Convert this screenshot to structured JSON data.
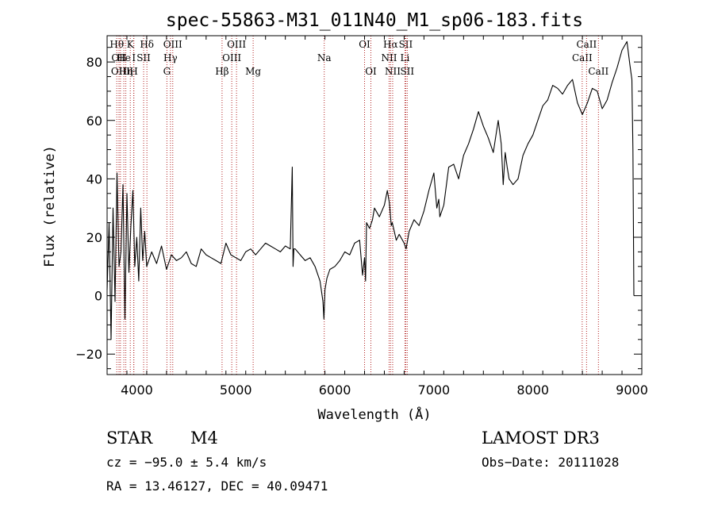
{
  "chart_data": {
    "type": "line",
    "title": "spec-55863-M31_011N40_M1_sp06-183.fits",
    "xlabel": "Wavelength (Å)",
    "ylabel": "Flux (relative)",
    "xlim": [
      3700,
      9100
    ],
    "ylim": [
      -27,
      89
    ],
    "xticks": [
      4000,
      5000,
      6000,
      7000,
      8000,
      9000
    ],
    "yticks": [
      -20,
      0,
      20,
      40,
      60,
      80
    ],
    "xminor_step": 200,
    "yminor_step": 5,
    "grid": false,
    "line_color": "#b22222",
    "series": [
      {
        "name": "flux",
        "x": [
          3700,
          3720,
          3740,
          3760,
          3780,
          3800,
          3820,
          3840,
          3860,
          3880,
          3900,
          3920,
          3940,
          3960,
          3980,
          4000,
          4020,
          4040,
          4060,
          4080,
          4100,
          4150,
          4200,
          4250,
          4300,
          4350,
          4400,
          4450,
          4500,
          4550,
          4600,
          4650,
          4700,
          4750,
          4800,
          4850,
          4900,
          4950,
          5000,
          5050,
          5100,
          5150,
          5200,
          5250,
          5300,
          5350,
          5400,
          5450,
          5500,
          5550,
          5570,
          5578,
          5586,
          5600,
          5650,
          5700,
          5750,
          5800,
          5850,
          5880,
          5890,
          5895,
          5900,
          5920,
          5950,
          6000,
          6050,
          6100,
          6150,
          6200,
          6250,
          6280,
          6300,
          6310,
          6320,
          6350,
          6380,
          6400,
          6450,
          6500,
          6530,
          6550,
          6560,
          6570,
          6580,
          6600,
          6620,
          6650,
          6700,
          6720,
          6750,
          6800,
          6850,
          6900,
          6950,
          7000,
          7030,
          7050,
          7060,
          7100,
          7150,
          7200,
          7250,
          7300,
          7350,
          7400,
          7450,
          7500,
          7550,
          7600,
          7650,
          7680,
          7700,
          7720,
          7740,
          7760,
          7800,
          7850,
          7900,
          7950,
          8000,
          8050,
          8100,
          8150,
          8200,
          8250,
          8300,
          8350,
          8400,
          8450,
          8500,
          8550,
          8600,
          8650,
          8700,
          8750,
          8800,
          8850,
          8900,
          8950,
          8980,
          9000,
          9010,
          9020
        ],
        "y": [
          2,
          25,
          -15,
          30,
          -2,
          42,
          10,
          15,
          38,
          -8,
          35,
          8,
          24,
          36,
          10,
          20,
          5,
          30,
          12,
          22,
          10,
          15,
          11,
          17,
          9,
          14,
          12,
          13,
          15,
          11,
          10,
          16,
          14,
          13,
          12,
          11,
          18,
          14,
          13,
          12,
          15,
          16,
          14,
          16,
          18,
          17,
          16,
          15,
          17,
          16,
          44,
          10,
          16,
          16,
          14,
          12,
          13,
          10,
          5,
          -2,
          -8,
          -3,
          2,
          6,
          9,
          10,
          12,
          15,
          14,
          18,
          19,
          7,
          13,
          5,
          25,
          23,
          26,
          30,
          27,
          31,
          36,
          32,
          28,
          24,
          25,
          22,
          19,
          21,
          18,
          16,
          22,
          26,
          24,
          29,
          36,
          42,
          30,
          33,
          27,
          31,
          44,
          45,
          40,
          48,
          52,
          57,
          63,
          58,
          54,
          49,
          60,
          52,
          38,
          49,
          44,
          40,
          38,
          40,
          48,
          52,
          55,
          60,
          65,
          67,
          72,
          71,
          69,
          72,
          74,
          66,
          62,
          66,
          71,
          70,
          64,
          67,
          73,
          78,
          84,
          87,
          79,
          74,
          50,
          0
        ]
      }
    ],
    "lines": [
      {
        "wl": 3798,
        "label": "Hθ",
        "row": 0
      },
      {
        "wl": 3820,
        "label": "OII",
        "row": 1
      },
      {
        "wl": 3835,
        "label": "OIII",
        "row": 2
      },
      {
        "wl": 3869,
        "label": "He",
        "row": 1
      },
      {
        "wl": 3889,
        "label": "Hη",
        "row": 2
      },
      {
        "wl": 3934,
        "label": "K",
        "row": 0
      },
      {
        "wl": 3969,
        "label": "H",
        "row": 2
      },
      {
        "wl": 3970,
        "label": "I",
        "row": 1
      },
      {
        "wl": 4069,
        "label": "SII",
        "row": 1
      },
      {
        "wl": 4102,
        "label": "Hδ",
        "row": 0
      },
      {
        "wl": 4304,
        "label": "G",
        "row": 2
      },
      {
        "wl": 4340,
        "label": "Hγ",
        "row": 1
      },
      {
        "wl": 4363,
        "label": "OIII",
        "row": 0
      },
      {
        "wl": 4861,
        "label": "Hβ",
        "row": 2
      },
      {
        "wl": 4959,
        "label": "OIII",
        "row": 1
      },
      {
        "wl": 5007,
        "label": "OIII",
        "row": 0
      },
      {
        "wl": 5175,
        "label": "Mg",
        "row": 2
      },
      {
        "wl": 5893,
        "label": "Na",
        "row": 1
      },
      {
        "wl": 6300,
        "label": "OI",
        "row": 0
      },
      {
        "wl": 6364,
        "label": "OI",
        "row": 2
      },
      {
        "wl": 6548,
        "label": "NII",
        "row": 1
      },
      {
        "wl": 6563,
        "label": "Hα",
        "row": 0
      },
      {
        "wl": 6584,
        "label": "NII",
        "row": 2
      },
      {
        "wl": 6708,
        "label": "Li",
        "row": 1
      },
      {
        "wl": 6716,
        "label": "SII",
        "row": 0
      },
      {
        "wl": 6731,
        "label": "SII",
        "row": 2
      },
      {
        "wl": 8498,
        "label": "CaII",
        "row": 1
      },
      {
        "wl": 8542,
        "label": "CaII",
        "row": 0
      },
      {
        "wl": 8662,
        "label": "CaII",
        "row": 2
      }
    ]
  },
  "info": {
    "object_class": "STAR",
    "subclass": "M4",
    "survey": "LAMOST DR3",
    "redshift": "cz = −95.0 ± 5.4 km/s",
    "obs_date": "Obs−Date: 20111028",
    "coords": "RA =  13.46127, DEC =  40.09471"
  }
}
